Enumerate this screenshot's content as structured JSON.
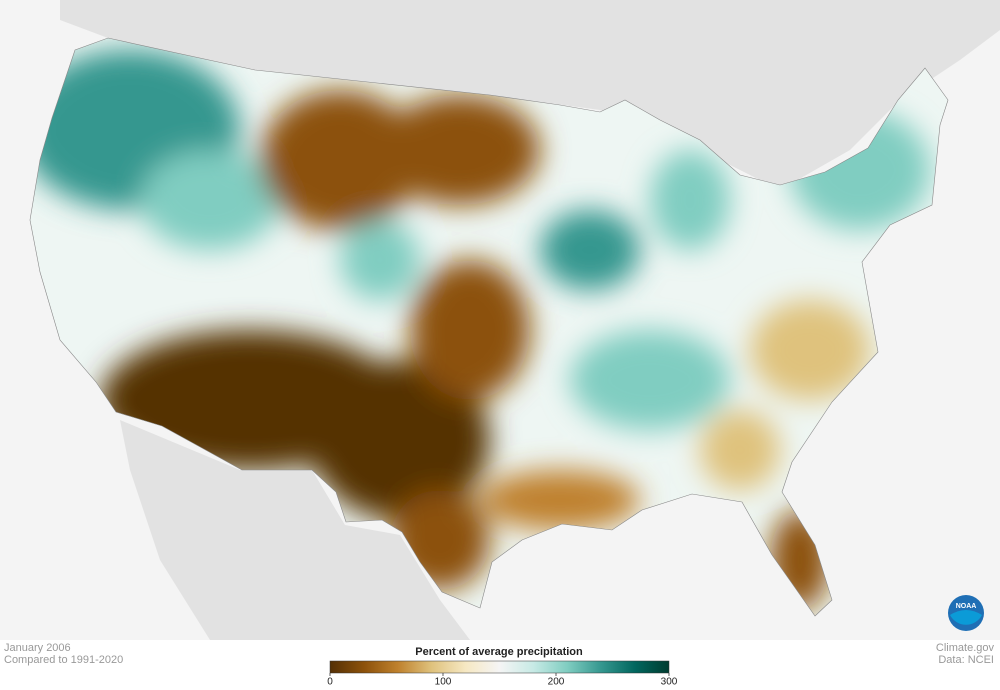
{
  "header": {
    "date": "January 2006",
    "baseline": "Compared to 1991-2020"
  },
  "credits": {
    "site": "Climate.gov",
    "source": "Data: NCEI",
    "logo": "NOAA"
  },
  "legend": {
    "title": "Percent of average precipitation",
    "range": [
      0,
      300
    ],
    "ticks": [
      0,
      100,
      200,
      300
    ],
    "colors": [
      "#543005",
      "#8c510a",
      "#bf812d",
      "#dfc27d",
      "#f6e8c3",
      "#f5f5f5",
      "#c7eae5",
      "#80cdc1",
      "#35978f",
      "#01665e",
      "#003c30"
    ]
  }
}
